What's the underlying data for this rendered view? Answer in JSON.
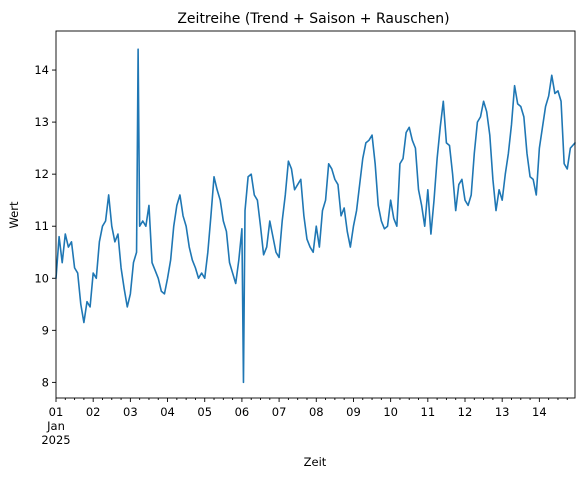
{
  "chart_data": {
    "type": "line",
    "title": "Zeitreihe (Trend + Saison + Rauschen)",
    "xlabel": "Zeit",
    "ylabel": "Wert",
    "ylim": [
      7.7,
      14.75
    ],
    "xlim": [
      "2025-01-01",
      "2025-01-14 23:00"
    ],
    "yticks": [
      8,
      9,
      10,
      11,
      12,
      13,
      14
    ],
    "xticks": [
      {
        "date": "2025-01-01",
        "label": "01",
        "sublabel": [
          "Jan",
          "2025"
        ]
      },
      {
        "date": "2025-01-02",
        "label": "02"
      },
      {
        "date": "2025-01-03",
        "label": "03"
      },
      {
        "date": "2025-01-04",
        "label": "04"
      },
      {
        "date": "2025-01-05",
        "label": "05"
      },
      {
        "date": "2025-01-06",
        "label": "06"
      },
      {
        "date": "2025-01-07",
        "label": "07"
      },
      {
        "date": "2025-01-08",
        "label": "08"
      },
      {
        "date": "2025-01-09",
        "label": "09"
      },
      {
        "date": "2025-01-10",
        "label": "10"
      },
      {
        "date": "2025-01-11",
        "label": "11"
      },
      {
        "date": "2025-01-12",
        "label": "12"
      },
      {
        "date": "2025-01-13",
        "label": "13"
      },
      {
        "date": "2025-01-14",
        "label": "14"
      }
    ],
    "grid": false,
    "colors": {
      "series": "#1f77b4"
    },
    "series": [
      {
        "x": [
          "2025-01-01 00:00",
          "2025-01-01 02:00",
          "2025-01-01 04:00",
          "2025-01-01 06:00",
          "2025-01-01 08:00",
          "2025-01-01 10:00",
          "2025-01-01 12:00",
          "2025-01-01 14:00",
          "2025-01-01 16:00",
          "2025-01-01 18:00",
          "2025-01-01 20:00",
          "2025-01-01 22:00",
          "2025-01-02 00:00",
          "2025-01-02 02:00",
          "2025-01-02 04:00",
          "2025-01-02 06:00",
          "2025-01-02 08:00",
          "2025-01-02 10:00",
          "2025-01-02 12:00",
          "2025-01-02 14:00",
          "2025-01-02 16:00",
          "2025-01-02 18:00",
          "2025-01-02 20:00",
          "2025-01-02 22:00",
          "2025-01-03 00:00",
          "2025-01-03 02:00",
          "2025-01-03 04:00",
          "2025-01-03 05:00",
          "2025-01-03 06:00",
          "2025-01-03 08:00",
          "2025-01-03 10:00",
          "2025-01-03 12:00",
          "2025-01-03 14:00",
          "2025-01-03 16:00",
          "2025-01-03 18:00",
          "2025-01-03 20:00",
          "2025-01-03 22:00",
          "2025-01-04 00:00",
          "2025-01-04 02:00",
          "2025-01-04 04:00",
          "2025-01-04 06:00",
          "2025-01-04 08:00",
          "2025-01-04 10:00",
          "2025-01-04 12:00",
          "2025-01-04 14:00",
          "2025-01-04 16:00",
          "2025-01-04 18:00",
          "2025-01-04 20:00",
          "2025-01-04 22:00",
          "2025-01-05 00:00",
          "2025-01-05 02:00",
          "2025-01-05 04:00",
          "2025-01-05 06:00",
          "2025-01-05 08:00",
          "2025-01-05 10:00",
          "2025-01-05 12:00",
          "2025-01-05 14:00",
          "2025-01-05 16:00",
          "2025-01-05 18:00",
          "2025-01-05 20:00",
          "2025-01-05 22:00",
          "2025-01-06 00:00",
          "2025-01-06 01:00",
          "2025-01-06 02:00",
          "2025-01-06 04:00",
          "2025-01-06 06:00",
          "2025-01-06 08:00",
          "2025-01-06 10:00",
          "2025-01-06 12:00",
          "2025-01-06 14:00",
          "2025-01-06 16:00",
          "2025-01-06 18:00",
          "2025-01-06 20:00",
          "2025-01-06 22:00",
          "2025-01-07 00:00",
          "2025-01-07 02:00",
          "2025-01-07 04:00",
          "2025-01-07 06:00",
          "2025-01-07 08:00",
          "2025-01-07 10:00",
          "2025-01-07 12:00",
          "2025-01-07 14:00",
          "2025-01-07 16:00",
          "2025-01-07 18:00",
          "2025-01-07 20:00",
          "2025-01-07 22:00",
          "2025-01-08 00:00",
          "2025-01-08 02:00",
          "2025-01-08 04:00",
          "2025-01-08 06:00",
          "2025-01-08 08:00",
          "2025-01-08 10:00",
          "2025-01-08 12:00",
          "2025-01-08 14:00",
          "2025-01-08 16:00",
          "2025-01-08 18:00",
          "2025-01-08 20:00",
          "2025-01-08 22:00",
          "2025-01-09 00:00",
          "2025-01-09 02:00",
          "2025-01-09 04:00",
          "2025-01-09 06:00",
          "2025-01-09 08:00",
          "2025-01-09 10:00",
          "2025-01-09 12:00",
          "2025-01-09 14:00",
          "2025-01-09 16:00",
          "2025-01-09 18:00",
          "2025-01-09 20:00",
          "2025-01-09 22:00",
          "2025-01-10 00:00",
          "2025-01-10 02:00",
          "2025-01-10 04:00",
          "2025-01-10 06:00",
          "2025-01-10 08:00",
          "2025-01-10 10:00",
          "2025-01-10 12:00",
          "2025-01-10 14:00",
          "2025-01-10 16:00",
          "2025-01-10 18:00",
          "2025-01-10 20:00",
          "2025-01-10 22:00",
          "2025-01-11 00:00",
          "2025-01-11 02:00",
          "2025-01-11 04:00",
          "2025-01-11 06:00",
          "2025-01-11 08:00",
          "2025-01-11 10:00",
          "2025-01-11 12:00",
          "2025-01-11 14:00",
          "2025-01-11 16:00",
          "2025-01-11 18:00",
          "2025-01-11 20:00",
          "2025-01-11 22:00",
          "2025-01-12 00:00",
          "2025-01-12 02:00",
          "2025-01-12 04:00",
          "2025-01-12 06:00",
          "2025-01-12 08:00",
          "2025-01-12 10:00",
          "2025-01-12 12:00",
          "2025-01-12 14:00",
          "2025-01-12 16:00",
          "2025-01-12 18:00",
          "2025-01-12 20:00",
          "2025-01-12 22:00",
          "2025-01-13 00:00",
          "2025-01-13 02:00",
          "2025-01-13 04:00",
          "2025-01-13 06:00",
          "2025-01-13 08:00",
          "2025-01-13 10:00",
          "2025-01-13 12:00",
          "2025-01-13 14:00",
          "2025-01-13 16:00",
          "2025-01-13 18:00",
          "2025-01-13 20:00",
          "2025-01-13 22:00",
          "2025-01-14 00:00",
          "2025-01-14 02:00",
          "2025-01-14 04:00",
          "2025-01-14 06:00",
          "2025-01-14 08:00",
          "2025-01-14 10:00",
          "2025-01-14 12:00",
          "2025-01-14 14:00",
          "2025-01-14 16:00",
          "2025-01-14 18:00",
          "2025-01-14 20:00",
          "2025-01-14 23:00"
        ],
        "y": [
          10.0,
          10.8,
          10.3,
          10.85,
          10.6,
          10.7,
          10.2,
          10.1,
          9.5,
          9.15,
          9.55,
          9.45,
          10.1,
          10.0,
          10.7,
          11.0,
          11.1,
          11.6,
          11.0,
          10.7,
          10.85,
          10.2,
          9.8,
          9.45,
          9.7,
          10.3,
          10.5,
          14.4,
          11.0,
          11.1,
          11.0,
          11.4,
          10.3,
          10.15,
          10.0,
          9.75,
          9.7,
          10.0,
          10.35,
          11.0,
          11.4,
          11.6,
          11.2,
          11.0,
          10.6,
          10.35,
          10.2,
          10.0,
          10.1,
          10.0,
          10.5,
          11.2,
          11.95,
          11.7,
          11.5,
          11.1,
          10.9,
          10.3,
          10.1,
          9.9,
          10.35,
          10.95,
          8.0,
          11.3,
          11.95,
          12.0,
          11.6,
          11.5,
          11.0,
          10.45,
          10.6,
          11.1,
          10.8,
          10.5,
          10.4,
          11.1,
          11.6,
          12.25,
          12.1,
          11.7,
          11.8,
          11.9,
          11.2,
          10.75,
          10.6,
          10.5,
          11.0,
          10.6,
          11.3,
          11.5,
          12.2,
          12.1,
          11.9,
          11.8,
          11.2,
          11.35,
          10.9,
          10.6,
          11.0,
          11.3,
          11.8,
          12.3,
          12.6,
          12.65,
          12.75,
          12.2,
          11.4,
          11.1,
          10.95,
          11.0,
          11.5,
          11.15,
          11.0,
          12.2,
          12.3,
          12.8,
          12.9,
          12.65,
          12.5,
          11.7,
          11.4,
          11.0,
          11.7,
          10.85,
          11.5,
          12.3,
          12.9,
          13.4,
          12.6,
          12.55,
          12.0,
          11.3,
          11.8,
          11.9,
          11.5,
          11.4,
          11.6,
          12.4,
          13.0,
          13.1,
          13.4,
          13.2,
          12.75,
          11.9,
          11.3,
          11.7,
          11.5,
          12.0,
          12.4,
          12.95,
          13.7,
          13.35,
          13.3,
          13.1,
          12.4,
          11.95,
          11.9,
          11.6,
          12.5,
          12.9,
          13.3,
          13.5,
          13.9,
          13.55,
          13.6,
          13.4,
          12.2,
          12.1,
          12.5,
          12.6
        ]
      }
    ]
  }
}
